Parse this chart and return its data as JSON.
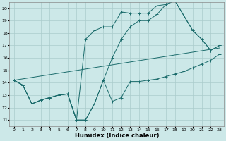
{
  "xlabel": "Humidex (Indice chaleur)",
  "bg_color": "#cce8e8",
  "grid_color": "#aacccc",
  "line_color": "#1a6b6b",
  "xlim": [
    -0.5,
    23.5
  ],
  "ylim": [
    10.5,
    20.5
  ],
  "xtick_labels": [
    "0",
    "1",
    "2",
    "3",
    "4",
    "5",
    "6",
    "7",
    "8",
    "9",
    "10",
    "11",
    "12",
    "13",
    "14",
    "15",
    "16",
    "17",
    "18",
    "19",
    "20",
    "21",
    "22",
    "23"
  ],
  "xticks": [
    0,
    1,
    2,
    3,
    4,
    5,
    6,
    7,
    8,
    9,
    10,
    11,
    12,
    13,
    14,
    15,
    16,
    17,
    18,
    19,
    20,
    21,
    22,
    23
  ],
  "yticks": [
    11,
    12,
    13,
    14,
    15,
    16,
    17,
    18,
    19,
    20
  ],
  "line1_x": [
    0,
    1,
    2,
    3,
    4,
    5,
    6,
    7,
    8,
    9,
    10,
    11,
    12,
    13,
    14,
    15,
    16,
    17,
    18,
    19,
    20,
    21,
    22,
    23
  ],
  "line1_y": [
    14.2,
    13.8,
    12.3,
    12.6,
    12.8,
    13.0,
    13.1,
    11.0,
    11.0,
    12.3,
    14.2,
    12.5,
    12.8,
    14.1,
    14.1,
    14.2,
    14.3,
    14.5,
    14.7,
    14.9,
    15.2,
    15.5,
    15.8,
    16.3
  ],
  "line2_x": [
    0,
    1,
    2,
    3,
    4,
    5,
    6,
    7,
    8,
    9,
    10,
    11,
    12,
    13,
    14,
    15,
    16,
    17,
    18,
    19,
    20,
    21,
    22,
    23
  ],
  "line2_y": [
    14.2,
    13.8,
    12.3,
    12.6,
    12.8,
    13.0,
    13.1,
    11.0,
    17.5,
    18.2,
    18.5,
    18.5,
    19.7,
    19.6,
    19.6,
    19.6,
    20.2,
    20.3,
    20.6,
    19.4,
    18.2,
    17.5,
    16.6,
    17.0
  ],
  "line3_x": [
    0,
    1,
    2,
    3,
    4,
    5,
    6,
    7,
    8,
    9,
    10,
    11,
    12,
    13,
    14,
    15,
    16,
    17,
    18,
    19,
    20,
    21,
    22,
    23
  ],
  "line3_y": [
    14.2,
    13.8,
    12.3,
    12.6,
    12.8,
    13.0,
    13.1,
    11.0,
    11.0,
    12.3,
    14.2,
    16.0,
    17.5,
    18.5,
    19.0,
    19.0,
    19.5,
    20.3,
    20.6,
    19.4,
    18.2,
    17.5,
    16.6,
    17.0
  ],
  "line4_x": [
    0,
    23
  ],
  "line4_y": [
    14.2,
    16.8
  ],
  "xlabel_fontsize": 6.0,
  "tick_fontsize": 4.5
}
